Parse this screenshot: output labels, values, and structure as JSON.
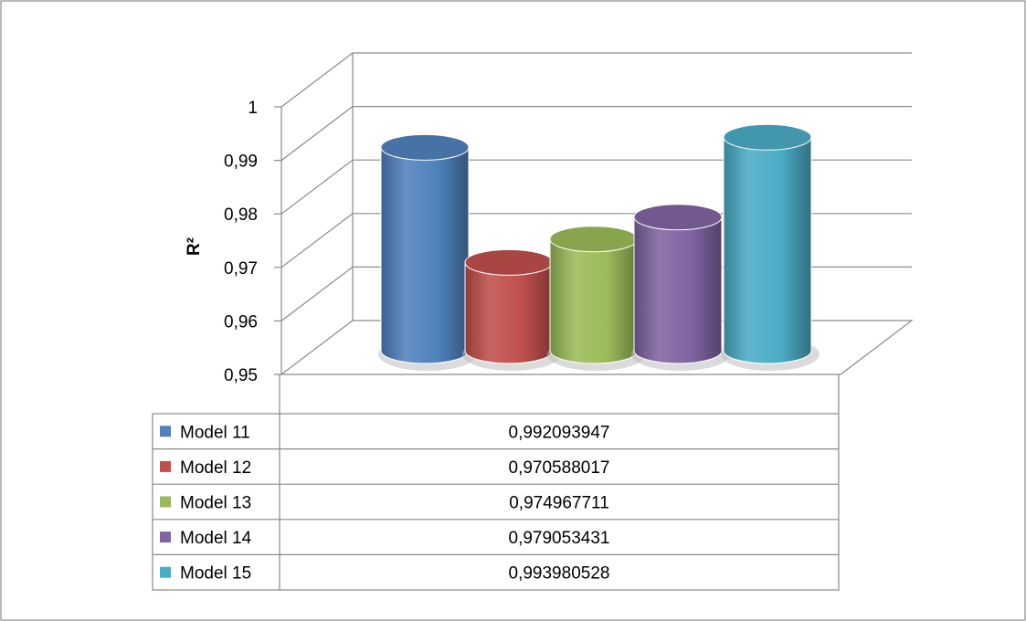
{
  "chart_data": {
    "type": "bar",
    "style": "3d-cylinder",
    "ylabel": "R²",
    "ylim": [
      0.95,
      1.0
    ],
    "ytick_values": [
      0.95,
      0.96,
      0.97,
      0.98,
      0.99,
      1.0
    ],
    "yticks": [
      "0,95",
      "0,96",
      "0,97",
      "0,98",
      "0,99",
      "1"
    ],
    "grid": true,
    "legend": "data-table-below",
    "series": [
      {
        "name": "Model 11",
        "value": 0.992093947,
        "label": "0,992093947",
        "color": "#4F81BD"
      },
      {
        "name": "Model 12",
        "value": 0.970588017,
        "label": "0,970588017",
        "color": "#C0504D"
      },
      {
        "name": "Model 13",
        "value": 0.974967711,
        "label": "0,974967711",
        "color": "#9BBB59"
      },
      {
        "name": "Model 14",
        "value": 0.979053431,
        "label": "0,979053431",
        "color": "#8064A2"
      },
      {
        "name": "Model 15",
        "value": 0.993980528,
        "label": "0,993980528",
        "color": "#4BACC6"
      }
    ]
  }
}
